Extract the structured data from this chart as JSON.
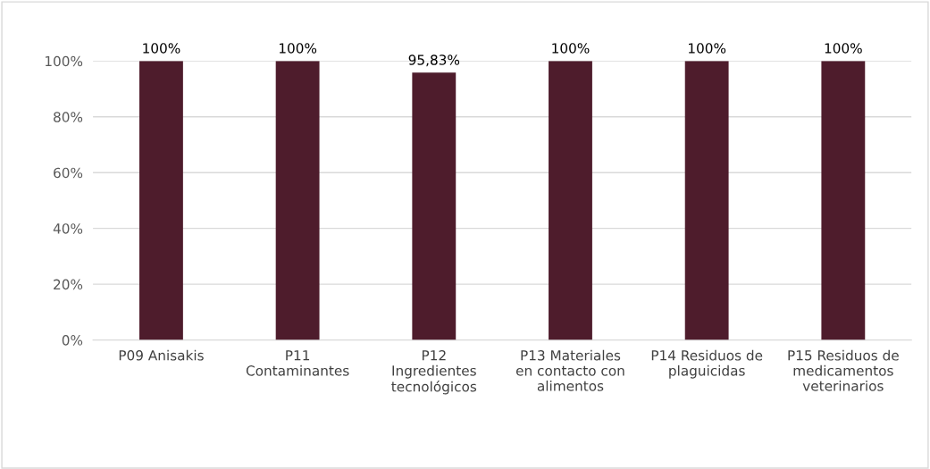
{
  "chart_data": {
    "type": "bar",
    "categories": [
      "P09 Anisakis",
      "P11 Contaminantes",
      "P12 Ingredientes tecnológicos",
      "P13 Materiales en contacto con alimentos",
      "P14 Residuos de plaguicidas",
      "P15 Residuos de medicamentos veterinarios"
    ],
    "values": [
      100,
      100,
      95.83,
      100,
      100,
      100
    ],
    "value_labels": [
      "100%",
      "100%",
      "95,83%",
      "100%",
      "100%",
      "100%"
    ],
    "color": "#4e1c2c",
    "ylim": [
      0,
      100
    ],
    "yticks": [
      {
        "value": 0,
        "label": "0%"
      },
      {
        "value": 20,
        "label": "20%"
      },
      {
        "value": 40,
        "label": "40%"
      },
      {
        "value": 60,
        "label": "60%"
      },
      {
        "value": 80,
        "label": "80%"
      },
      {
        "value": 100,
        "label": "100%"
      }
    ],
    "grid": "y",
    "legend": false
  }
}
